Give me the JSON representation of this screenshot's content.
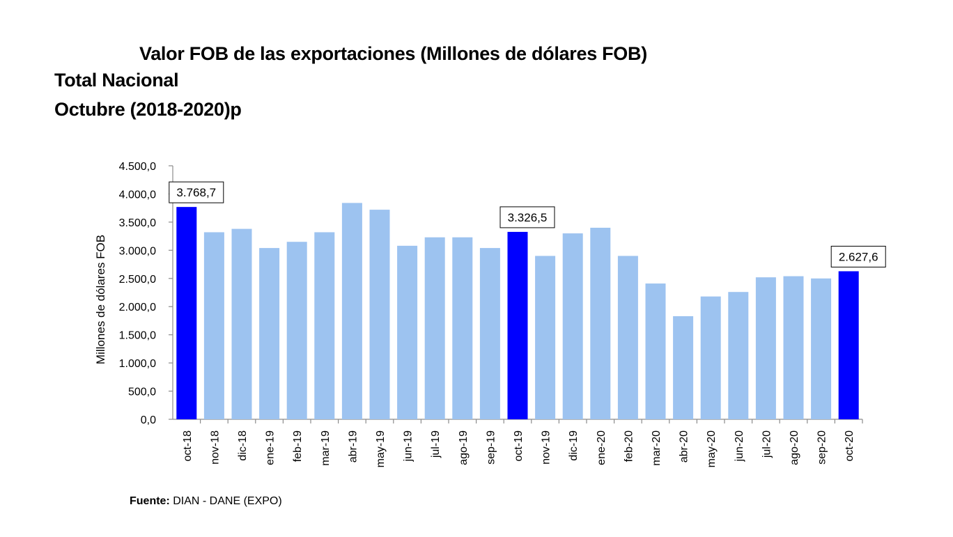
{
  "title": {
    "main": "Valor FOB de las exportaciones (Millones de dólares FOB)",
    "line2": "Total Nacional",
    "line3": "Octubre (2018-2020)p"
  },
  "source": {
    "label": "Fuente:",
    "text": "DIAN - DANE (EXPO)"
  },
  "chart_data": {
    "type": "bar",
    "title": "Valor FOB de las exportaciones (Millones de dólares FOB)",
    "xlabel": "",
    "ylabel": "Millones de dólares FOB",
    "ylim": [
      0,
      4500
    ],
    "ytick_step": 500,
    "yticks": [
      "0,0",
      "500,0",
      "1.000,0",
      "1.500,0",
      "2.000,0",
      "2.500,0",
      "3.000,0",
      "3.500,0",
      "4.000,0",
      "4.500,0"
    ],
    "grid": false,
    "categories": [
      "oct-18",
      "nov-18",
      "dic-18",
      "ene-19",
      "feb-19",
      "mar-19",
      "abr-19",
      "may-19",
      "jun-19",
      "jul-19",
      "ago-19",
      "sep-19",
      "oct-19",
      "nov-19",
      "dic-19",
      "ene-20",
      "feb-20",
      "mar-20",
      "abr-20",
      "may-20",
      "jun-20",
      "jul-20",
      "ago-20",
      "sep-20",
      "oct-20"
    ],
    "values": [
      3768.7,
      3320,
      3380,
      3040,
      3150,
      3320,
      3840,
      3720,
      3080,
      3230,
      3230,
      3040,
      3326.5,
      2900,
      3300,
      3400,
      2900,
      2410,
      1830,
      2180,
      2260,
      2520,
      2540,
      2500,
      2627.6
    ],
    "highlighted": [
      "oct-18",
      "oct-19",
      "oct-20"
    ],
    "data_labels": [
      {
        "category": "oct-18",
        "text": "3.768,7"
      },
      {
        "category": "oct-19",
        "text": "3.326,5"
      },
      {
        "category": "oct-20",
        "text": "2.627,6"
      }
    ],
    "colors": {
      "normal": "#9DC3F0",
      "highlight": "#0000FF",
      "axis": "#8C8C8C"
    }
  }
}
